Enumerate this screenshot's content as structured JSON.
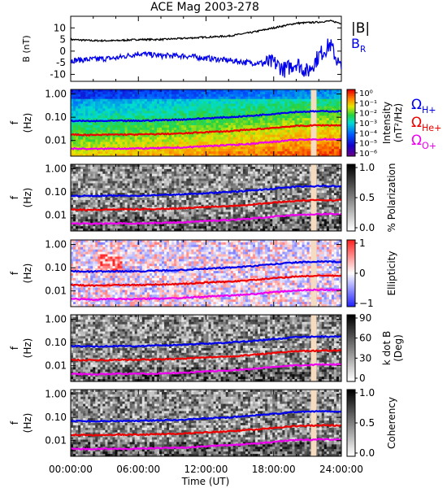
{
  "title": "ACE Mag 2003-278",
  "x_axis": {
    "label": "Time (UT)",
    "ticks": [
      "00:00:00",
      "06:00:00",
      "12:00:00",
      "18:00:00",
      "24:00:00"
    ],
    "range_hours": [
      0,
      24
    ]
  },
  "colors": {
    "B_total": "#000000",
    "B_R": "#0000ee",
    "proton_cyclotron": "#0000ee",
    "helium_cyclotron": "#ee0000",
    "oxygen_cyclotron": "#ee00ee",
    "data_gap": "#f5dcc0"
  },
  "chart_data": [
    {
      "type": "line",
      "panel": "magnetic-field",
      "ylabel": "B (nT)",
      "ylim": [
        -13,
        15
      ],
      "yticks": [
        -10,
        -5,
        0,
        5,
        10
      ],
      "legend_placement": "right",
      "series": [
        {
          "name": "|B|",
          "color": "#000000",
          "x": [
            0,
            2,
            4,
            6,
            8,
            10,
            12,
            14,
            16,
            18,
            20,
            22,
            23,
            24
          ],
          "y": [
            5,
            4.5,
            4.5,
            5,
            5,
            5.5,
            6,
            6.5,
            8,
            10,
            12,
            12.5,
            13,
            12
          ]
        },
        {
          "name": "B",
          "subscript": "R",
          "color": "#0000ee",
          "x": [
            0,
            2,
            4,
            6,
            8,
            10,
            12,
            14,
            16,
            18,
            19,
            20,
            21,
            22,
            23,
            24
          ],
          "y": [
            -4,
            -3.5,
            -3,
            -1,
            -2,
            -2,
            -3,
            -4,
            -5,
            -5,
            -8,
            -5,
            -9,
            -2,
            3,
            -8
          ]
        }
      ]
    },
    {
      "type": "heatmap",
      "panel": "intensity",
      "ylabel": "f (Hz)",
      "yscale": "log",
      "yticks": [
        "1.00",
        "0.10",
        "0.01"
      ],
      "colorbar": {
        "label": "Intensity (nT²/Hz)",
        "ticks": [
          "10⁰",
          "10⁻¹",
          "10⁻²",
          "10⁻³",
          "10⁻⁴",
          "10⁻⁵",
          "10⁻⁶"
        ]
      },
      "legend": [
        {
          "symbol": "Ω",
          "subscript": "H+",
          "color": "#0000ee"
        },
        {
          "symbol": "Ω",
          "subscript": "He+",
          "color": "#ee0000"
        },
        {
          "symbol": "Ω",
          "subscript": "O+",
          "color": "#ee00ee"
        }
      ]
    },
    {
      "type": "heatmap",
      "panel": "polarization",
      "ylabel": "f (Hz)",
      "yscale": "log",
      "yticks": [
        "1.00",
        "0.10",
        "0.01"
      ],
      "colorbar": {
        "label": "% Polarization",
        "ticks": [
          "1.0",
          "0.5",
          "0.0"
        ]
      }
    },
    {
      "type": "heatmap",
      "panel": "ellipticity",
      "ylabel": "f (Hz)",
      "yscale": "log",
      "yticks": [
        "1.00",
        "0.10",
        "0.01"
      ],
      "colorbar": {
        "label": "Ellipticity",
        "ticks": [
          "1",
          "0",
          "−1"
        ]
      }
    },
    {
      "type": "heatmap",
      "panel": "k-dot-b",
      "ylabel": "f (Hz)",
      "yscale": "log",
      "yticks": [
        "1.00",
        "0.10",
        "0.01"
      ],
      "colorbar": {
        "label": "k dot B (Deg)",
        "ticks": [
          "90",
          "60",
          "30",
          "0"
        ]
      }
    },
    {
      "type": "heatmap",
      "panel": "coherency",
      "ylabel": "f (Hz)",
      "yscale": "log",
      "yticks": [
        "1.00",
        "0.10",
        "0.01"
      ],
      "colorbar": {
        "label": "Coherency",
        "ticks": [
          "1.0",
          "0.5",
          "0.0"
        ]
      }
    },
    {
      "type": "line",
      "panel": "cyclotron-frequencies",
      "description_of": "gyrofrequency traces overlaid on every spectrogram",
      "x": [
        0,
        2,
        4,
        6,
        8,
        10,
        12,
        14,
        16,
        18,
        20,
        22,
        24
      ],
      "series": [
        {
          "name": "H+",
          "color": "#0000ee",
          "y": [
            0.07,
            0.068,
            0.07,
            0.07,
            0.075,
            0.08,
            0.09,
            0.1,
            0.115,
            0.14,
            0.17,
            0.18,
            0.18
          ]
        },
        {
          "name": "He+",
          "color": "#ee0000",
          "y": [
            0.018,
            0.017,
            0.018,
            0.018,
            0.019,
            0.02,
            0.023,
            0.025,
            0.029,
            0.035,
            0.042,
            0.045,
            0.045
          ]
        },
        {
          "name": "O+",
          "color": "#ee00ee",
          "y": [
            0.0045,
            0.0043,
            0.0045,
            0.0045,
            0.0047,
            0.005,
            0.0057,
            0.0063,
            0.0072,
            0.0088,
            0.0105,
            0.0112,
            0.0112
          ]
        }
      ],
      "data_gap_hours": [
        21.3,
        21.8
      ]
    }
  ]
}
